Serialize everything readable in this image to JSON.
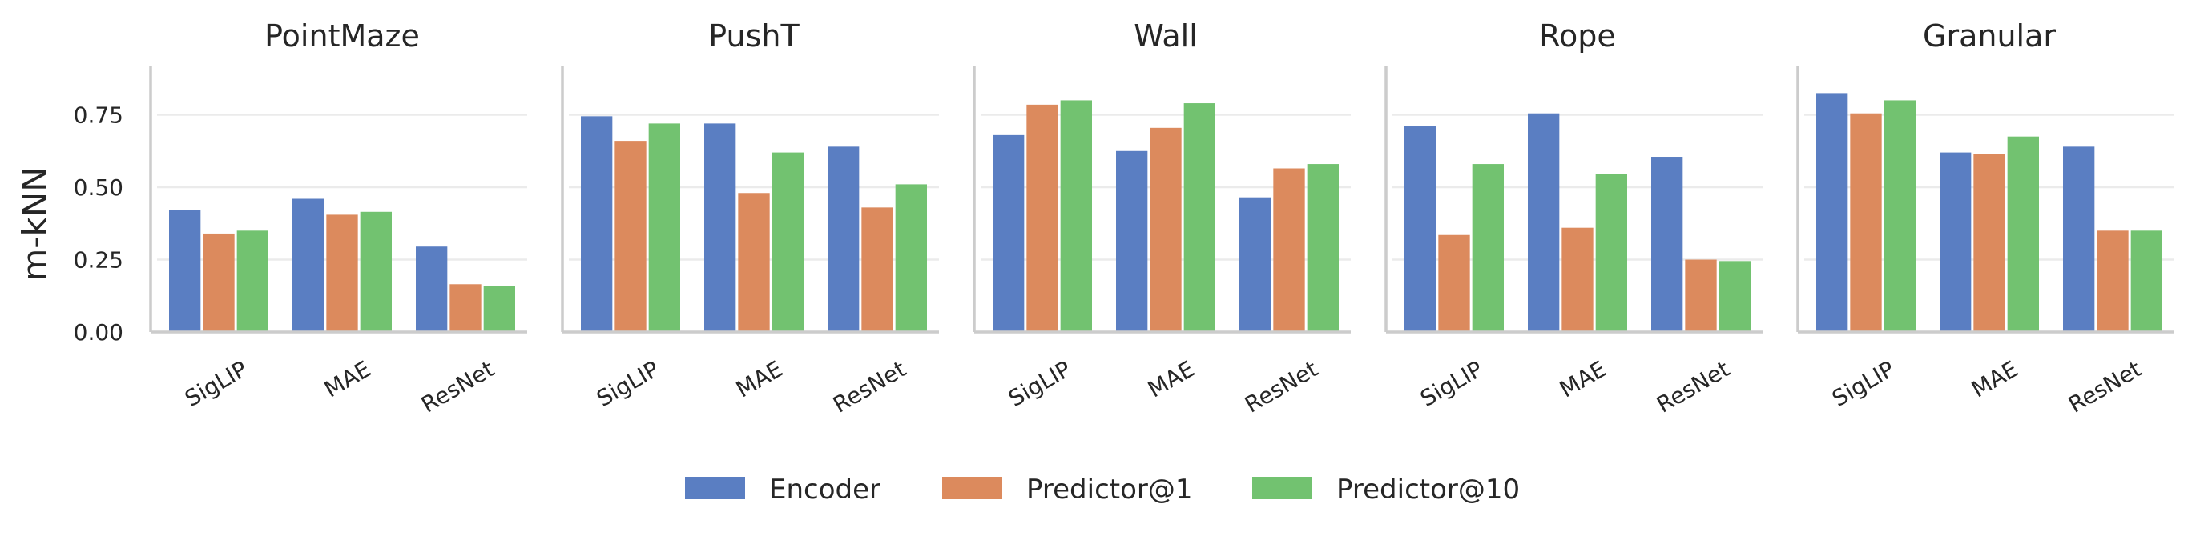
{
  "chart_data": {
    "type": "bar",
    "ylabel": "m-kNN",
    "ylim": [
      0,
      0.92
    ],
    "yticks": [
      "0.00",
      "0.25",
      "0.50",
      "0.75"
    ],
    "categories": [
      "SigLIP",
      "MAE",
      "ResNet"
    ],
    "series_names": [
      "Encoder",
      "Predictor@1",
      "Predictor@10"
    ],
    "colors": [
      "#5a7ec2",
      "#dc8a5d",
      "#72c270"
    ],
    "grid": true,
    "legend_position": "bottom-center",
    "panels": [
      {
        "title": "PointMaze",
        "values": [
          [
            0.42,
            0.46,
            0.295
          ],
          [
            0.34,
            0.405,
            0.165
          ],
          [
            0.35,
            0.415,
            0.16
          ]
        ]
      },
      {
        "title": "PushT",
        "values": [
          [
            0.745,
            0.72,
            0.64
          ],
          [
            0.66,
            0.48,
            0.43
          ],
          [
            0.72,
            0.62,
            0.51
          ]
        ]
      },
      {
        "title": "Wall",
        "values": [
          [
            0.68,
            0.625,
            0.465
          ],
          [
            0.785,
            0.705,
            0.565
          ],
          [
            0.8,
            0.79,
            0.58
          ]
        ]
      },
      {
        "title": "Rope",
        "values": [
          [
            0.71,
            0.755,
            0.605
          ],
          [
            0.335,
            0.36,
            0.25
          ],
          [
            0.58,
            0.545,
            0.245
          ]
        ]
      },
      {
        "title": "Granular",
        "values": [
          [
            0.825,
            0.62,
            0.64
          ],
          [
            0.755,
            0.615,
            0.35
          ],
          [
            0.8,
            0.675,
            0.35
          ]
        ]
      }
    ]
  }
}
